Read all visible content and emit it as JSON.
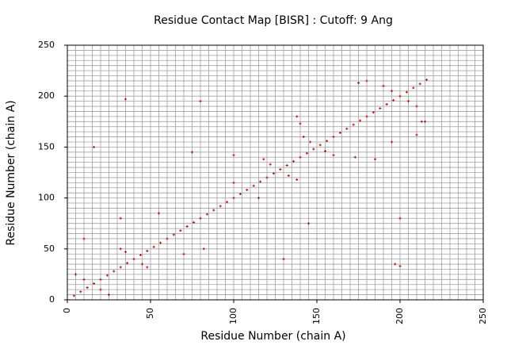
{
  "chart_data": {
    "type": "scatter",
    "title": "Residue Contact Map [BISR] : Cutoff: 9 Ang",
    "xlabel": "Residue Number (chain A)",
    "ylabel": "Residue Number (chain A)",
    "color": "#c00000",
    "grid": true,
    "xlim": [
      0,
      250
    ],
    "ylim": [
      0,
      250
    ],
    "xticks": [
      0,
      50,
      100,
      150,
      200,
      250
    ],
    "yticks": [
      0,
      50,
      100,
      150,
      200,
      250
    ],
    "xminor": [
      0,
      5,
      10,
      15,
      20,
      25,
      30,
      35,
      40,
      45,
      50,
      55,
      60,
      65,
      70,
      75,
      80,
      85,
      90,
      95,
      100,
      105,
      110,
      115,
      120,
      125,
      130,
      135,
      140,
      145,
      150,
      155,
      160,
      165,
      170,
      175,
      180,
      185,
      190,
      195,
      200,
      205,
      210,
      215,
      220,
      225,
      230,
      235,
      240,
      245,
      250
    ],
    "yminor": [
      0,
      5,
      10,
      15,
      20,
      25,
      30,
      35,
      40,
      45,
      50,
      55,
      60,
      65,
      70,
      75,
      80,
      85,
      90,
      95,
      100,
      105,
      110,
      115,
      120,
      125,
      130,
      135,
      140,
      145,
      150,
      155,
      160,
      165,
      170,
      175,
      180,
      185,
      190,
      195,
      200,
      205,
      210,
      215,
      220,
      225,
      230,
      235,
      240,
      245,
      250
    ],
    "x": [
      4,
      8,
      12,
      16,
      20,
      24,
      28,
      32,
      36,
      40,
      44,
      48,
      52,
      56,
      60,
      64,
      68,
      72,
      76,
      80,
      84,
      88,
      92,
      96,
      100,
      104,
      108,
      112,
      116,
      120,
      124,
      128,
      132,
      136,
      140,
      144,
      148,
      152,
      156,
      160,
      164,
      168,
      172,
      176,
      180,
      184,
      188,
      192,
      196,
      200,
      204,
      208,
      212,
      216,
      5,
      10,
      20,
      25,
      32,
      35,
      45,
      48,
      118,
      122,
      133,
      138,
      142,
      146,
      155,
      160,
      190,
      195,
      205,
      210,
      35,
      80,
      16,
      175,
      180,
      213,
      197,
      200,
      140,
      138,
      173,
      185,
      195,
      210,
      215,
      100,
      75,
      145,
      100,
      115,
      82,
      70,
      55,
      130,
      200,
      10,
      32
    ],
    "values": [
      4,
      8,
      12,
      16,
      20,
      24,
      28,
      32,
      36,
      40,
      44,
      48,
      52,
      56,
      60,
      64,
      68,
      72,
      76,
      80,
      84,
      88,
      92,
      96,
      100,
      104,
      108,
      112,
      116,
      120,
      124,
      128,
      132,
      136,
      140,
      144,
      148,
      152,
      156,
      160,
      164,
      168,
      172,
      176,
      180,
      184,
      188,
      192,
      196,
      200,
      204,
      208,
      212,
      216,
      25,
      20,
      10,
      5,
      50,
      47,
      35,
      32,
      138,
      133,
      122,
      118,
      160,
      155,
      146,
      142,
      210,
      205,
      195,
      190,
      197,
      195,
      150,
      213,
      215,
      175,
      35,
      33,
      173,
      180,
      140,
      138,
      155,
      162,
      175,
      142,
      145,
      75,
      115,
      100,
      50,
      45,
      85,
      40,
      80,
      60,
      80
    ]
  }
}
